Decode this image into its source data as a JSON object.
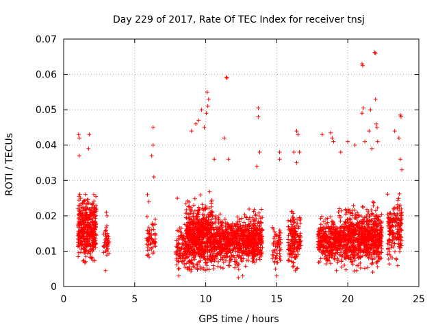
{
  "chart_data": {
    "type": "scatter",
    "title": "Day 229 of 2017, Rate Of TEC Index for receiver tnsj",
    "xlabel": "GPS time / hours",
    "ylabel": "ROTI / TECUs",
    "xlim": [
      0,
      25
    ],
    "ylim": [
      0,
      0.07
    ],
    "xticks": [
      0,
      5,
      10,
      15,
      20,
      25
    ],
    "yticks": [
      0,
      0.01,
      0.02,
      0.03,
      0.04,
      0.05,
      0.06,
      0.07
    ],
    "x_tick_labels": [
      "0",
      "5",
      "10",
      "15",
      "20",
      "25"
    ],
    "y_tick_labels": [
      "0",
      "0.01",
      "0.02",
      "0.03",
      "0.04",
      "0.05",
      "0.06",
      "0.07"
    ],
    "grid": true,
    "marker": "+",
    "color": "#ff0000",
    "clusters": [
      {
        "x_range": [
          1.0,
          2.3
        ],
        "y_center": 0.016,
        "y_spread": 0.007,
        "count": 420
      },
      {
        "x_range": [
          2.8,
          3.2
        ],
        "y_center": 0.012,
        "y_spread": 0.003,
        "count": 40
      },
      {
        "x_range": [
          5.8,
          6.5
        ],
        "y_center": 0.013,
        "y_spread": 0.004,
        "count": 60
      },
      {
        "x_range": [
          7.9,
          8.6
        ],
        "y_center": 0.011,
        "y_spread": 0.005,
        "count": 90
      },
      {
        "x_range": [
          8.6,
          10.5
        ],
        "y_center": 0.014,
        "y_spread": 0.007,
        "count": 650
      },
      {
        "x_range": [
          10.5,
          14.0
        ],
        "y_center": 0.013,
        "y_spread": 0.005,
        "count": 900
      },
      {
        "x_range": [
          14.7,
          15.3
        ],
        "y_center": 0.012,
        "y_spread": 0.005,
        "count": 60
      },
      {
        "x_range": [
          15.8,
          16.7
        ],
        "y_center": 0.013,
        "y_spread": 0.006,
        "count": 180
      },
      {
        "x_range": [
          17.9,
          19.8
        ],
        "y_center": 0.013,
        "y_spread": 0.005,
        "count": 420
      },
      {
        "x_range": [
          19.8,
          22.4
        ],
        "y_center": 0.014,
        "y_spread": 0.006,
        "count": 750
      },
      {
        "x_range": [
          22.8,
          23.8
        ],
        "y_center": 0.016,
        "y_spread": 0.006,
        "count": 180
      }
    ],
    "notable_points": [
      {
        "x": 1.05,
        "y": 0.043
      },
      {
        "x": 1.1,
        "y": 0.042
      },
      {
        "x": 1.8,
        "y": 0.043
      },
      {
        "x": 1.75,
        "y": 0.039
      },
      {
        "x": 1.1,
        "y": 0.037
      },
      {
        "x": 6.3,
        "y": 0.045
      },
      {
        "x": 6.3,
        "y": 0.04
      },
      {
        "x": 6.2,
        "y": 0.037
      },
      {
        "x": 6.35,
        "y": 0.031
      },
      {
        "x": 3.0,
        "y": 0.021
      },
      {
        "x": 3.05,
        "y": 0.02
      },
      {
        "x": 5.9,
        "y": 0.026
      },
      {
        "x": 6.0,
        "y": 0.024
      },
      {
        "x": 8.0,
        "y": 0.025
      },
      {
        "x": 10.1,
        "y": 0.055
      },
      {
        "x": 10.2,
        "y": 0.053
      },
      {
        "x": 10.15,
        "y": 0.051
      },
      {
        "x": 10.05,
        "y": 0.049
      },
      {
        "x": 9.7,
        "y": 0.05
      },
      {
        "x": 9.5,
        "y": 0.047
      },
      {
        "x": 9.0,
        "y": 0.044
      },
      {
        "x": 9.3,
        "y": 0.046
      },
      {
        "x": 9.9,
        "y": 0.045
      },
      {
        "x": 11.5,
        "y": 0.059
      },
      {
        "x": 11.45,
        "y": 0.0592
      },
      {
        "x": 11.3,
        "y": 0.042
      },
      {
        "x": 11.6,
        "y": 0.036
      },
      {
        "x": 13.7,
        "y": 0.0505
      },
      {
        "x": 13.7,
        "y": 0.048
      },
      {
        "x": 13.8,
        "y": 0.038
      },
      {
        "x": 13.6,
        "y": 0.034
      },
      {
        "x": 10.6,
        "y": 0.036
      },
      {
        "x": 15.2,
        "y": 0.038
      },
      {
        "x": 15.2,
        "y": 0.036
      },
      {
        "x": 16.4,
        "y": 0.044
      },
      {
        "x": 16.5,
        "y": 0.043
      },
      {
        "x": 16.2,
        "y": 0.038
      },
      {
        "x": 16.6,
        "y": 0.038
      },
      {
        "x": 16.4,
        "y": 0.035
      },
      {
        "x": 18.8,
        "y": 0.0435
      },
      {
        "x": 18.9,
        "y": 0.042
      },
      {
        "x": 19.0,
        "y": 0.041
      },
      {
        "x": 18.2,
        "y": 0.043
      },
      {
        "x": 19.5,
        "y": 0.038
      },
      {
        "x": 20.0,
        "y": 0.041
      },
      {
        "x": 20.5,
        "y": 0.04
      },
      {
        "x": 21.0,
        "y": 0.063
      },
      {
        "x": 21.05,
        "y": 0.0625
      },
      {
        "x": 21.9,
        "y": 0.0662
      },
      {
        "x": 21.95,
        "y": 0.066
      },
      {
        "x": 21.95,
        "y": 0.053
      },
      {
        "x": 21.1,
        "y": 0.0505
      },
      {
        "x": 21.0,
        "y": 0.049
      },
      {
        "x": 21.6,
        "y": 0.05
      },
      {
        "x": 22.0,
        "y": 0.046
      },
      {
        "x": 22.05,
        "y": 0.045
      },
      {
        "x": 21.5,
        "y": 0.044
      },
      {
        "x": 21.2,
        "y": 0.041
      },
      {
        "x": 22.1,
        "y": 0.041
      },
      {
        "x": 21.7,
        "y": 0.039
      },
      {
        "x": 23.7,
        "y": 0.0485
      },
      {
        "x": 23.75,
        "y": 0.048
      },
      {
        "x": 23.3,
        "y": 0.044
      },
      {
        "x": 23.6,
        "y": 0.042
      },
      {
        "x": 23.7,
        "y": 0.036
      },
      {
        "x": 23.8,
        "y": 0.033
      },
      {
        "x": 12.6,
        "y": 0.003
      },
      {
        "x": 12.3,
        "y": 0.0025
      },
      {
        "x": 8.1,
        "y": 0.003
      },
      {
        "x": 15.0,
        "y": 0.003
      },
      {
        "x": 16.3,
        "y": 0.0045
      },
      {
        "x": 19.2,
        "y": 0.0045
      },
      {
        "x": 2.95,
        "y": 0.0045
      }
    ]
  }
}
